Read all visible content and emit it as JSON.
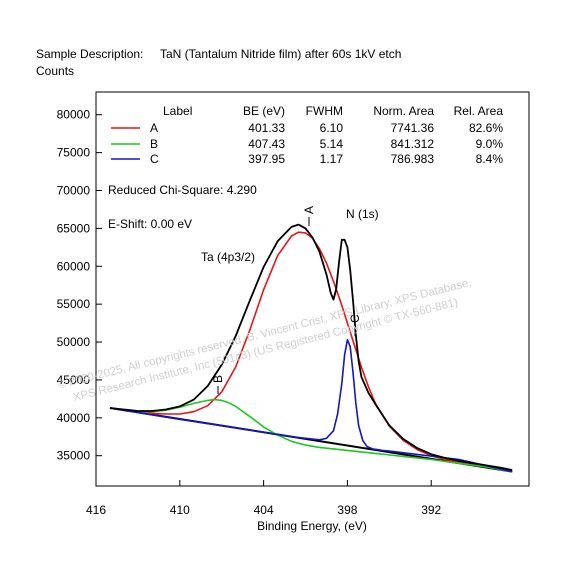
{
  "chart_data": {
    "type": "line",
    "description_label": "Sample Description:",
    "description": "TaN (Tantalum Nitride film) after 60s 1kV etch",
    "ylabel": "Counts",
    "xlabel": "Binding Energy, (eV)",
    "x_reversed": true,
    "xlim": [
      416,
      385
    ],
    "ylim": [
      31000,
      83000
    ],
    "x_ticks": [
      416,
      410,
      404,
      398,
      392
    ],
    "y_ticks": [
      35000,
      40000,
      45000,
      50000,
      55000,
      60000,
      65000,
      70000,
      75000,
      80000
    ],
    "legend": {
      "headers": [
        "Label",
        "BE (eV)",
        "FWHM",
        "Norm. Area",
        "Rel. Area"
      ],
      "rows": [
        {
          "label": "A",
          "be": "401.33",
          "fwhm": "6.10",
          "norm_area": "7741.36",
          "rel_area": "82.6%",
          "color": "#e8141a"
        },
        {
          "label": "B",
          "be": "407.43",
          "fwhm": "5.14",
          "norm_area": "841.312",
          "rel_area": "9.0%",
          "color": "#1fc81f"
        },
        {
          "label": "C",
          "be": "397.95",
          "fwhm": "1.17",
          "norm_area": "786.983",
          "rel_area": "8.4%",
          "color": "#1414c8"
        }
      ]
    },
    "reduced_chi_square": "Reduced Chi-Square: 4.290",
    "e_shift": "E-Shift: 0.00 eV",
    "annotations": {
      "n1s": "N (1s)",
      "ta4p": "Ta (4p3/2)",
      "peak_a": "A",
      "peak_b": "B",
      "peak_c": "C"
    },
    "watermark": [
      "© 2020-2025,  All copyrights reserved,  B. Vincent Crist,  XPS Library, XPS Database,",
      "XPS Research Institute, Inc (501c3)  (US Registered Copyright © TX-560-881)"
    ],
    "background": {
      "x": [
        415.0,
        386.2
      ],
      "y": [
        41300,
        32900
      ]
    },
    "series": [
      {
        "name": "A",
        "color": "#e8141a",
        "x": [
          415.0,
          414.0,
          413.0,
          412.0,
          411.0,
          410.0,
          409.0,
          408.0,
          407.0,
          406.0,
          405.0,
          404.0,
          403.0,
          402.0,
          401.5,
          401.0,
          400.5,
          400.0,
          399.5,
          399.0,
          398.5,
          398.0,
          397.5,
          397.0,
          396.5,
          396.0,
          395.0,
          394.0,
          393.0,
          392.0,
          391.0,
          390.0,
          389.0,
          388.0,
          387.0,
          386.2
        ],
        "y": [
          41300,
          41000,
          40700,
          40600,
          40500,
          40500,
          40800,
          41600,
          43400,
          46700,
          51500,
          56900,
          61400,
          64000,
          64500,
          64400,
          63700,
          62300,
          60400,
          58000,
          55400,
          52500,
          49600,
          46700,
          44100,
          41900,
          38900,
          37000,
          35800,
          35000,
          34500,
          34100,
          33800,
          33500,
          33200,
          32900
        ]
      },
      {
        "name": "B",
        "color": "#1fc81f",
        "x": [
          415.0,
          414.0,
          413.0,
          412.0,
          411.0,
          410.0,
          409.0,
          408.0,
          407.5,
          407.0,
          406.5,
          406.0,
          405.0,
          404.0,
          403.0,
          402.0,
          401.0,
          400.0,
          399.0,
          398.0,
          397.0,
          396.0,
          394.0,
          392.0,
          390.0,
          388.0,
          386.2
        ],
        "y": [
          41300,
          41050,
          40850,
          40800,
          41000,
          41400,
          41900,
          42300,
          42400,
          42300,
          42000,
          41500,
          40200,
          38800,
          37700,
          36900,
          36400,
          36100,
          35900,
          35700,
          35500,
          35300,
          34900,
          34500,
          34000,
          33500,
          32900
        ]
      },
      {
        "name": "C",
        "color": "#1414c8",
        "x": [
          415.0,
          410.0,
          405.0,
          402.0,
          400.0,
          399.5,
          399.0,
          398.7,
          398.4,
          398.2,
          398.0,
          397.8,
          397.6,
          397.4,
          397.2,
          396.9,
          396.6,
          396.2,
          395.5,
          395.0,
          390.0,
          386.2
        ],
        "y": [
          41300,
          39800,
          38400,
          37500,
          37100,
          37300,
          38300,
          40500,
          44500,
          48300,
          50300,
          49400,
          46000,
          42000,
          39000,
          37000,
          36200,
          35900,
          35700,
          35600,
          34500,
          32900
        ]
      },
      {
        "name": "Envelope",
        "color": "#000000",
        "x": [
          415.0,
          414.0,
          413.0,
          412.0,
          411.0,
          410.0,
          409.0,
          408.0,
          407.0,
          406.0,
          405.0,
          404.0,
          403.0,
          402.0,
          401.5,
          401.0,
          400.5,
          400.0,
          399.5,
          399.2,
          399.0,
          398.8,
          398.6,
          398.4,
          398.2,
          398.0,
          397.8,
          397.6,
          397.4,
          397.2,
          397.0,
          396.5,
          396.0,
          395.0,
          394.0,
          393.0,
          392.0,
          391.0,
          390.0,
          389.0,
          388.0,
          387.0,
          386.2
        ],
        "y": [
          41300,
          41100,
          40900,
          40900,
          41100,
          41500,
          42400,
          44200,
          47000,
          50800,
          55400,
          59900,
          63300,
          65200,
          65500,
          65000,
          63800,
          61900,
          58900,
          56500,
          55600,
          57000,
          60500,
          63500,
          63500,
          62500,
          59500,
          55500,
          51000,
          47500,
          45400,
          43300,
          41800,
          39000,
          37200,
          36000,
          35200,
          34700,
          34300,
          34000,
          33700,
          33400,
          33100
        ]
      }
    ]
  }
}
